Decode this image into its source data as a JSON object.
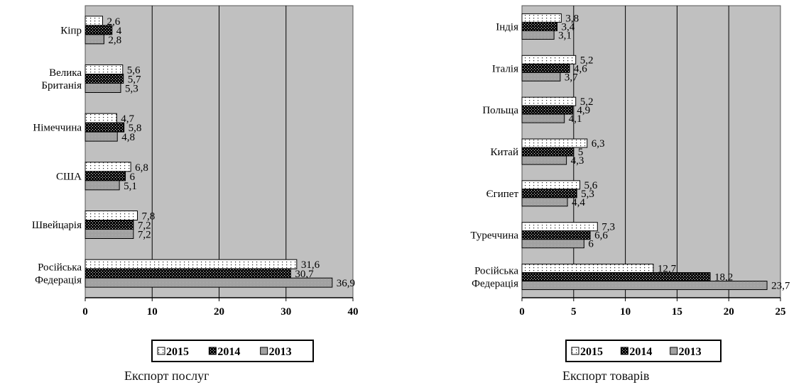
{
  "chart_data": [
    {
      "type": "bar",
      "orientation": "horizontal",
      "caption": "Експорт послуг",
      "categories": [
        [
          "Кіпр"
        ],
        [
          "Велика",
          "Британія"
        ],
        [
          "Німеччина"
        ],
        [
          "США"
        ],
        [
          "Швейцарія"
        ],
        [
          "Російська",
          "Федерація"
        ]
      ],
      "series": [
        {
          "name": "2015",
          "pattern": "dots",
          "values": [
            2.6,
            5.6,
            4.7,
            6.8,
            7.8,
            31.6
          ],
          "labels": [
            "2,6",
            "5,6",
            "4,7",
            "6,8",
            "7,8",
            "31,6"
          ]
        },
        {
          "name": "2014",
          "pattern": "checker",
          "values": [
            4,
            5.7,
            5.8,
            6,
            7.2,
            30.7
          ],
          "labels": [
            "4",
            "5,7",
            "5,8",
            "6",
            "7,2",
            "30,7"
          ]
        },
        {
          "name": "2013",
          "pattern": "gray",
          "values": [
            2.8,
            5.3,
            4.8,
            5.1,
            7.2,
            36.9
          ],
          "labels": [
            "2,8",
            "5,3",
            "4,8",
            "5,1",
            "7,2",
            "36,9"
          ]
        }
      ],
      "xlim": [
        0,
        40
      ],
      "xticks": [
        0,
        10,
        20,
        30,
        40
      ],
      "grid": true,
      "plot_background": "#c0c0c0",
      "legend_position": "bottom"
    },
    {
      "type": "bar",
      "orientation": "horizontal",
      "caption": "Експорт товарів",
      "categories": [
        [
          "Індія"
        ],
        [
          "Італія"
        ],
        [
          "Польща"
        ],
        [
          "Китай"
        ],
        [
          "Єгипет"
        ],
        [
          "Туреччина"
        ],
        [
          "Російська",
          "Федерація"
        ]
      ],
      "series": [
        {
          "name": "2015",
          "pattern": "dots",
          "values": [
            3.8,
            5.2,
            5.2,
            6.3,
            5.6,
            7.3,
            12.7
          ],
          "labels": [
            "3,8",
            "5,2",
            "5,2",
            "6,3",
            "5,6",
            "7,3",
            "12,7"
          ]
        },
        {
          "name": "2014",
          "pattern": "checker",
          "values": [
            3.4,
            4.6,
            4.9,
            5,
            5.3,
            6.6,
            18.2
          ],
          "labels": [
            "3,4",
            "4,6",
            "4,9",
            "5",
            "5,3",
            "6,6",
            "18,2"
          ]
        },
        {
          "name": "2013",
          "pattern": "gray",
          "values": [
            3.1,
            3.7,
            4.1,
            4.3,
            4.4,
            6,
            23.7
          ],
          "labels": [
            "3,1",
            "3,7",
            "4,1",
            "4,3",
            "4,4",
            "6",
            "23,7"
          ]
        }
      ],
      "xlim": [
        0,
        25
      ],
      "xticks": [
        0,
        5,
        10,
        15,
        20,
        25
      ],
      "grid": true,
      "plot_background": "#c0c0c0",
      "legend_position": "bottom"
    }
  ]
}
